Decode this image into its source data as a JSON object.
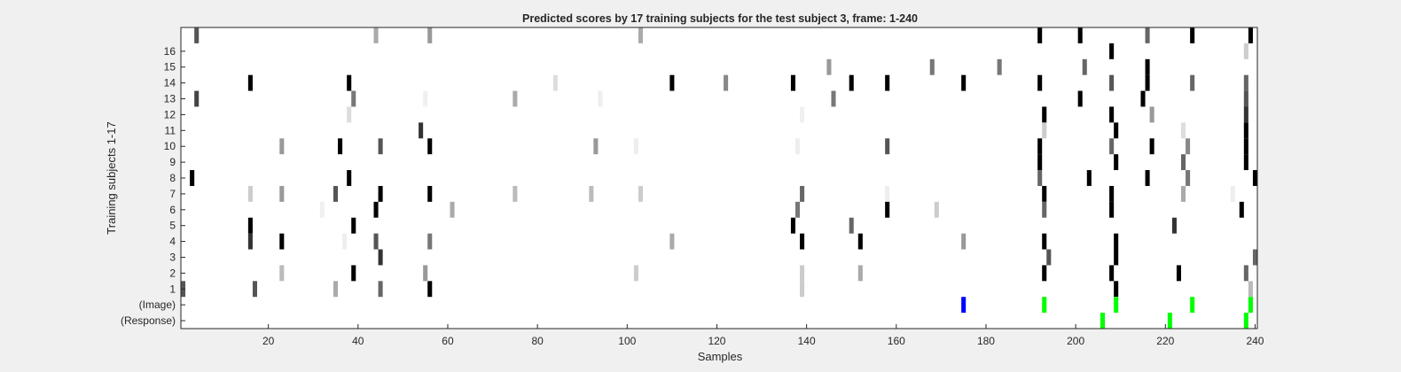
{
  "chart_data": {
    "type": "heatmap",
    "title": "Predicted scores by 17 training subjects for the test subject 3, frame: 1-240",
    "xlabel": "Samples",
    "ylabel": "Training subjects 1-17",
    "xlim": [
      0.5,
      240.5
    ],
    "x_ticks": [
      20,
      40,
      60,
      80,
      100,
      120,
      140,
      160,
      180,
      200,
      220,
      240
    ],
    "grid": false,
    "rows": [
      {
        "label": "",
        "cells": [
          [
            4,
            "#555555"
          ],
          [
            44,
            "#aaaaaa"
          ],
          [
            56,
            "#999999"
          ],
          [
            103,
            "#aaaaaa"
          ],
          [
            192,
            "#000000"
          ],
          [
            201,
            "#000000"
          ],
          [
            216,
            "#666666"
          ],
          [
            226,
            "#000000"
          ],
          [
            239,
            "#000000"
          ]
        ]
      },
      {
        "label": "16",
        "cells": [
          [
            208,
            "#000000"
          ],
          [
            238,
            "#cccccc"
          ]
        ]
      },
      {
        "label": "15",
        "cells": [
          [
            145,
            "#999999"
          ],
          [
            168,
            "#777777"
          ],
          [
            183,
            "#777777"
          ],
          [
            202,
            "#666666"
          ],
          [
            216,
            "#000000"
          ]
        ]
      },
      {
        "label": "14",
        "cells": [
          [
            16,
            "#000000"
          ],
          [
            38,
            "#000000"
          ],
          [
            84,
            "#dddddd"
          ],
          [
            110,
            "#000000"
          ],
          [
            122,
            "#888888"
          ],
          [
            137,
            "#000000"
          ],
          [
            150,
            "#000000"
          ],
          [
            158,
            "#000000"
          ],
          [
            175,
            "#000000"
          ],
          [
            192,
            "#000000"
          ],
          [
            208,
            "#555555"
          ],
          [
            216,
            "#000000"
          ],
          [
            226,
            "#666666"
          ],
          [
            238,
            "#666666"
          ]
        ]
      },
      {
        "label": "13",
        "cells": [
          [
            4,
            "#444444"
          ],
          [
            39,
            "#777777"
          ],
          [
            55,
            "#f0f0f0"
          ],
          [
            75,
            "#aaaaaa"
          ],
          [
            94,
            "#eeeeee"
          ],
          [
            146,
            "#777777"
          ],
          [
            201,
            "#000000"
          ],
          [
            215,
            "#000000"
          ],
          [
            238,
            "#555555"
          ]
        ]
      },
      {
        "label": "12",
        "cells": [
          [
            38,
            "#dddddd"
          ],
          [
            139,
            "#f0f0f0"
          ],
          [
            193,
            "#000000"
          ],
          [
            208,
            "#000000"
          ],
          [
            217,
            "#999999"
          ],
          [
            238,
            "#333333"
          ]
        ]
      },
      {
        "label": "11",
        "cells": [
          [
            54,
            "#333333"
          ],
          [
            193,
            "#cccccc"
          ],
          [
            209,
            "#000000"
          ],
          [
            224,
            "#dddddd"
          ],
          [
            238,
            "#000000"
          ]
        ]
      },
      {
        "label": "10",
        "cells": [
          [
            23,
            "#999999"
          ],
          [
            36,
            "#000000"
          ],
          [
            45,
            "#555555"
          ],
          [
            56,
            "#000000"
          ],
          [
            93,
            "#999999"
          ],
          [
            102,
            "#eeeeee"
          ],
          [
            138,
            "#eeeeee"
          ],
          [
            158,
            "#555555"
          ],
          [
            192,
            "#000000"
          ],
          [
            208,
            "#666666"
          ],
          [
            217,
            "#000000"
          ],
          [
            225,
            "#888888"
          ],
          [
            238,
            "#000000"
          ]
        ]
      },
      {
        "label": "9",
        "cells": [
          [
            192,
            "#000000"
          ],
          [
            209,
            "#000000"
          ],
          [
            224,
            "#666666"
          ],
          [
            238,
            "#000000"
          ]
        ]
      },
      {
        "label": "8",
        "cells": [
          [
            3,
            "#000000"
          ],
          [
            38,
            "#000000"
          ],
          [
            192,
            "#666666"
          ],
          [
            203,
            "#000000"
          ],
          [
            216,
            "#000000"
          ],
          [
            225,
            "#777777"
          ],
          [
            240,
            "#000000"
          ]
        ]
      },
      {
        "label": "7",
        "cells": [
          [
            16,
            "#cccccc"
          ],
          [
            23,
            "#999999"
          ],
          [
            35,
            "#555555"
          ],
          [
            45,
            "#000000"
          ],
          [
            56,
            "#000000"
          ],
          [
            75,
            "#bbbbbb"
          ],
          [
            92,
            "#bbbbbb"
          ],
          [
            103,
            "#cccccc"
          ],
          [
            139,
            "#666666"
          ],
          [
            158,
            "#eeeeee"
          ],
          [
            193,
            "#000000"
          ],
          [
            208,
            "#000000"
          ],
          [
            224,
            "#aaaaaa"
          ],
          [
            235,
            "#eeeeee"
          ]
        ]
      },
      {
        "label": "6",
        "cells": [
          [
            32,
            "#f0f0f0"
          ],
          [
            44,
            "#000000"
          ],
          [
            61,
            "#aaaaaa"
          ],
          [
            138,
            "#777777"
          ],
          [
            158,
            "#000000"
          ],
          [
            169,
            "#cccccc"
          ],
          [
            193,
            "#666666"
          ],
          [
            208,
            "#000000"
          ],
          [
            237,
            "#000000"
          ]
        ]
      },
      {
        "label": "5",
        "cells": [
          [
            16,
            "#000000"
          ],
          [
            39,
            "#000000"
          ],
          [
            137,
            "#000000"
          ],
          [
            150,
            "#666666"
          ],
          [
            222,
            "#333333"
          ]
        ]
      },
      {
        "label": "4",
        "cells": [
          [
            16,
            "#333333"
          ],
          [
            23,
            "#000000"
          ],
          [
            37,
            "#eeeeee"
          ],
          [
            44,
            "#555555"
          ],
          [
            56,
            "#777777"
          ],
          [
            110,
            "#aaaaaa"
          ],
          [
            139,
            "#000000"
          ],
          [
            152,
            "#000000"
          ],
          [
            175,
            "#999999"
          ],
          [
            193,
            "#000000"
          ],
          [
            209,
            "#000000"
          ]
        ]
      },
      {
        "label": "3",
        "cells": [
          [
            45,
            "#333333"
          ],
          [
            194,
            "#555555"
          ],
          [
            209,
            "#000000"
          ],
          [
            240,
            "#666666"
          ]
        ]
      },
      {
        "label": "2",
        "cells": [
          [
            23,
            "#bbbbbb"
          ],
          [
            39,
            "#000000"
          ],
          [
            55,
            "#999999"
          ],
          [
            102,
            "#cccccc"
          ],
          [
            139,
            "#cccccc"
          ],
          [
            152,
            "#aaaaaa"
          ],
          [
            193,
            "#000000"
          ],
          [
            208,
            "#000000"
          ],
          [
            223,
            "#000000"
          ],
          [
            238,
            "#666666"
          ]
        ]
      },
      {
        "label": "1",
        "cells": [
          [
            1,
            "#555555"
          ],
          [
            17,
            "#555555"
          ],
          [
            35,
            "#aaaaaa"
          ],
          [
            45,
            "#666666"
          ],
          [
            56,
            "#000000"
          ],
          [
            139,
            "#cccccc"
          ],
          [
            209,
            "#000000"
          ],
          [
            239,
            "#bbbbbb"
          ]
        ]
      },
      {
        "label": "(Image)",
        "cells": [
          [
            175,
            "#0000ff"
          ],
          [
            193,
            "#00ff00"
          ],
          [
            209,
            "#00ff00"
          ],
          [
            226,
            "#00ff00"
          ],
          [
            239,
            "#00ff00"
          ]
        ]
      },
      {
        "label": "(Response)",
        "cells": [
          [
            206,
            "#00ff00"
          ],
          [
            221,
            "#00ff00"
          ],
          [
            238,
            "#00ff00"
          ]
        ]
      }
    ]
  }
}
